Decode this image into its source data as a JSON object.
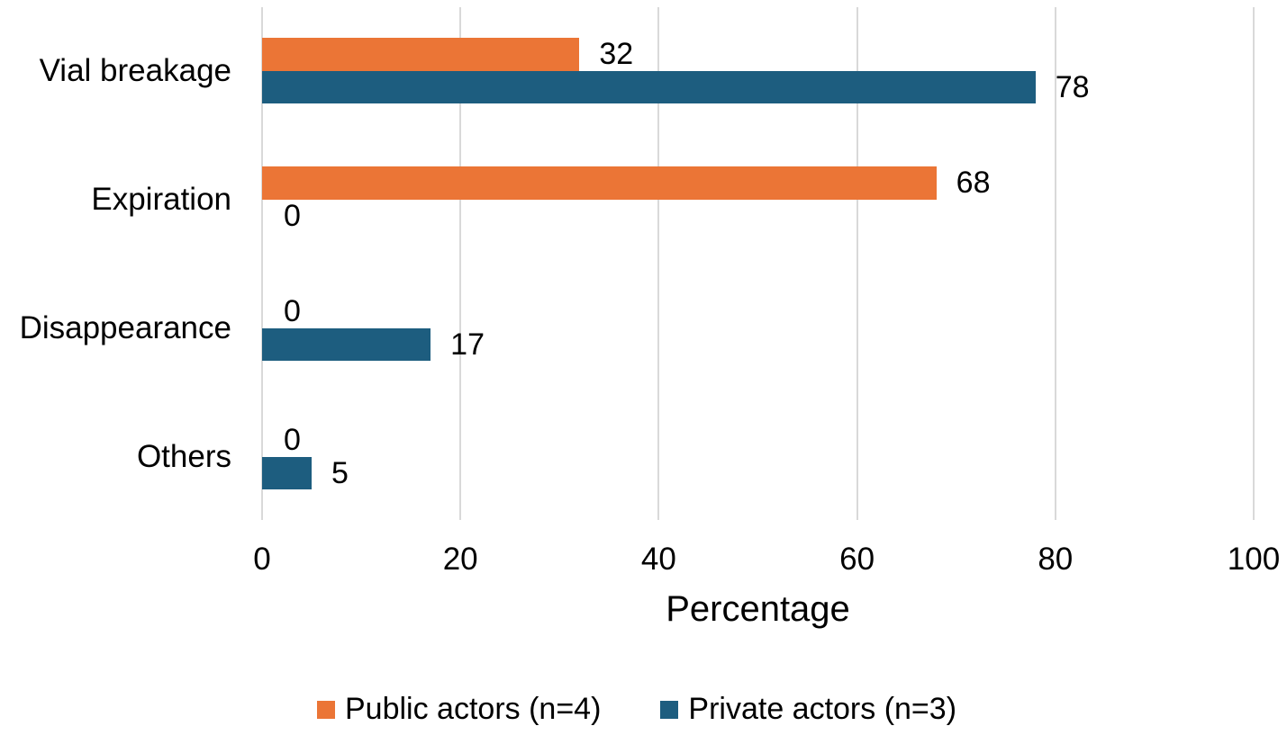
{
  "chart_data": {
    "type": "bar",
    "orientation": "horizontal",
    "categories": [
      "Vial breakage",
      "Expiration",
      "Disappearance",
      "Others"
    ],
    "series": [
      {
        "name": "Public actors (n=4)",
        "color": "#EB7536",
        "values": [
          32,
          68,
          0,
          0
        ]
      },
      {
        "name": "Private actors (n=3)",
        "color": "#1D5D7F",
        "values": [
          78,
          0,
          17,
          5
        ]
      }
    ],
    "xlabel": "Percentage",
    "xlim": [
      0,
      100
    ],
    "xticks": [
      0,
      20,
      40,
      60,
      80,
      100
    ],
    "data_labels": true,
    "grid": true,
    "gridline_color": "#D9D9D9",
    "text_color": "#000000",
    "legend_position": "bottom",
    "background_color": "#FFFFFF"
  }
}
